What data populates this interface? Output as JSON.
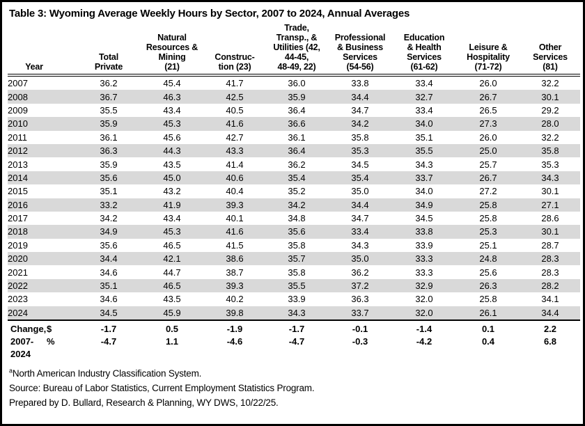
{
  "title": "Table 3: Wyoming Average Weekly Hours by Sector, 2007 to 2024, Annual Averages",
  "colors": {
    "row_alt": "#d9d9d9",
    "border": "#000000",
    "background": "#ffffff",
    "text": "#000000"
  },
  "table": {
    "headers": [
      "Year",
      "Total\nPrivate",
      "Natural\nResources &\nMining\n(21)",
      "Construc-\ntion (23)",
      "Trade,\nTransp., &\nUtilities (42,\n44-45,\n48-49, 22)",
      "Professional\n& Business\nServices\n(54-56)",
      "Education\n& Health\nServices\n(61-62)",
      "Leisure &\nHospitality\n(71-72)",
      "Other\nServices\n(81)"
    ],
    "rows": [
      [
        "2007",
        "36.2",
        "45.4",
        "41.7",
        "36.0",
        "33.8",
        "33.4",
        "26.0",
        "32.2"
      ],
      [
        "2008",
        "36.7",
        "46.3",
        "42.5",
        "35.9",
        "34.4",
        "32.7",
        "26.7",
        "30.1"
      ],
      [
        "2009",
        "35.5",
        "43.4",
        "40.5",
        "36.4",
        "34.7",
        "33.4",
        "26.5",
        "29.2"
      ],
      [
        "2010",
        "35.9",
        "45.3",
        "41.6",
        "36.6",
        "34.2",
        "34.0",
        "27.3",
        "28.0"
      ],
      [
        "2011",
        "36.1",
        "45.6",
        "42.7",
        "36.1",
        "35.8",
        "35.1",
        "26.0",
        "32.2"
      ],
      [
        "2012",
        "36.3",
        "44.3",
        "43.3",
        "36.4",
        "35.3",
        "35.5",
        "25.0",
        "35.8"
      ],
      [
        "2013",
        "35.9",
        "43.5",
        "41.4",
        "36.2",
        "34.5",
        "34.3",
        "25.7",
        "35.3"
      ],
      [
        "2014",
        "35.6",
        "45.0",
        "40.6",
        "35.4",
        "35.4",
        "33.7",
        "26.7",
        "34.3"
      ],
      [
        "2015",
        "35.1",
        "43.2",
        "40.4",
        "35.2",
        "35.0",
        "34.0",
        "27.2",
        "30.1"
      ],
      [
        "2016",
        "33.2",
        "41.9",
        "39.3",
        "34.2",
        "34.4",
        "34.9",
        "25.8",
        "27.1"
      ],
      [
        "2017",
        "34.2",
        "43.4",
        "40.1",
        "34.8",
        "34.7",
        "34.5",
        "25.8",
        "28.6"
      ],
      [
        "2018",
        "34.9",
        "45.3",
        "41.6",
        "35.6",
        "33.4",
        "33.8",
        "25.3",
        "30.1"
      ],
      [
        "2019",
        "35.6",
        "46.5",
        "41.5",
        "35.8",
        "34.3",
        "33.9",
        "25.1",
        "28.7"
      ],
      [
        "2020",
        "34.4",
        "42.1",
        "38.6",
        "35.7",
        "35.0",
        "33.3",
        "24.8",
        "28.3"
      ],
      [
        "2021",
        "34.6",
        "44.7",
        "38.7",
        "35.8",
        "36.2",
        "33.3",
        "25.6",
        "28.3"
      ],
      [
        "2022",
        "35.1",
        "46.5",
        "39.3",
        "35.5",
        "37.2",
        "32.9",
        "26.3",
        "28.2"
      ],
      [
        "2023",
        "34.6",
        "43.5",
        "40.2",
        "33.9",
        "36.3",
        "32.0",
        "25.8",
        "34.1"
      ],
      [
        "2024",
        "34.5",
        "45.9",
        "39.8",
        "34.3",
        "33.7",
        "32.0",
        "26.1",
        "34.4"
      ]
    ]
  },
  "change": {
    "row1_label": "Change,",
    "row1_symbol": "$",
    "row1_values": [
      "-1.7",
      "0.5",
      "-1.9",
      "-1.7",
      "-0.1",
      "-1.4",
      "0.1",
      "2.2"
    ],
    "row2_label": "2007-\n2024",
    "row2_symbol": "%",
    "row2_values": [
      "-4.7",
      "1.1",
      "-4.6",
      "-4.7",
      "-0.3",
      "-4.2",
      "0.4",
      "6.8"
    ]
  },
  "footnotes": {
    "naics_sup": "a",
    "naics": "North American Industry Classification System.",
    "source": "Source: Bureau of Labor Statistics, Current Employment Statistics Program.",
    "prepared": "Prepared by D. Bullard, Research & Planning, WY DWS, 10/22/25."
  }
}
